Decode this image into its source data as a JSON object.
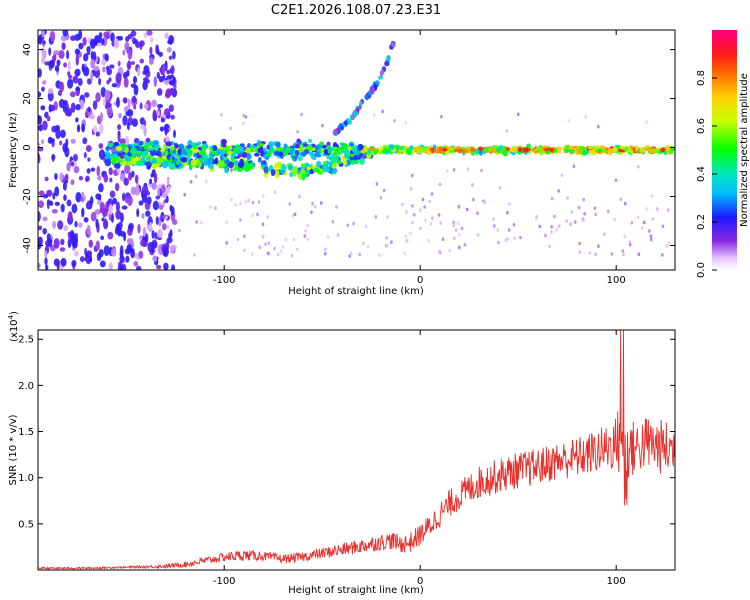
{
  "title": "C2E1.2026.108.07.23.E31",
  "chart_data": [
    {
      "type": "heatmap",
      "title": "C2E1.2026.108.07.23.E31",
      "xlabel": "Height of straight line (km)",
      "ylabel": "Frequency (Hz)",
      "xlim": [
        -195,
        130
      ],
      "ylim": [
        -50,
        48
      ],
      "x_ticks": [
        -100,
        0,
        100
      ],
      "y_ticks": [
        -40,
        -20,
        0,
        20,
        40
      ],
      "grid": false,
      "colorbar": {
        "label": "Normalized spectral amplitude",
        "range": [
          0.0,
          1.0
        ],
        "ticks": [
          0.0,
          0.2,
          0.4,
          0.6,
          0.8
        ],
        "tick_labels": [
          "0.0",
          "0.2",
          "0.4",
          "0.6",
          "0.8"
        ],
        "colormap": "rainbow"
      },
      "features": [
        {
          "name": "main-band",
          "x_range": [
            -160,
            130
          ],
          "frequency_hz": 0,
          "peak_amplitude": 0.95
        },
        {
          "name": "lower-branch",
          "x": [
            -160,
            -110,
            -80,
            -60,
            -40,
            -25
          ],
          "frequency_hz": [
            -5,
            -6,
            -8,
            -10,
            -6,
            -2
          ],
          "amplitude": 0.5
        },
        {
          "name": "rising-branch",
          "x": [
            -45,
            -35,
            -28,
            -22,
            -17,
            -13
          ],
          "frequency_hz": [
            5,
            12,
            20,
            26,
            35,
            44
          ],
          "amplitude": 0.3
        },
        {
          "name": "noise-region",
          "x_range": [
            -195,
            -125
          ],
          "frequency_range": [
            -50,
            48
          ],
          "amplitude": 0.15
        }
      ]
    },
    {
      "type": "line",
      "xlabel": "Height of straight line (km)",
      "ylabel": "SNR (10 * v/v)",
      "y_multiplier": "(x10",
      "y_multiplier_exp": "4",
      "y_multiplier_close": ")",
      "xlim": [
        -195,
        130
      ],
      "ylim": [
        0,
        2.6
      ],
      "x_ticks": [
        -100,
        0,
        100
      ],
      "y_ticks": [
        0.5,
        1.0,
        1.5,
        2.0,
        2.5
      ],
      "y_tick_labels": [
        "0.5",
        "1.0",
        "1.5",
        "2.0",
        "2.5"
      ],
      "grid": false,
      "series": [
        {
          "name": "SNR",
          "color": "#e8312d",
          "x": [
            -195,
            -170,
            -150,
            -130,
            -120,
            -110,
            -100,
            -90,
            -80,
            -70,
            -60,
            -50,
            -40,
            -30,
            -20,
            -15,
            -10,
            -5,
            0,
            5,
            10,
            15,
            20,
            25,
            30,
            40,
            50,
            60,
            70,
            80,
            90,
            95,
            100,
            103,
            105,
            110,
            115,
            120,
            125,
            130
          ],
          "values": [
            0.02,
            0.02,
            0.03,
            0.04,
            0.06,
            0.1,
            0.14,
            0.16,
            0.15,
            0.12,
            0.14,
            0.18,
            0.22,
            0.26,
            0.3,
            0.32,
            0.28,
            0.3,
            0.38,
            0.48,
            0.6,
            0.72,
            0.8,
            0.88,
            0.95,
            1.02,
            1.08,
            1.12,
            1.18,
            1.22,
            1.28,
            1.32,
            1.38,
            1.45,
            1.3,
            1.32,
            1.38,
            1.35,
            1.32,
            1.3
          ],
          "noise_amplitude": [
            0.01,
            0.01,
            0.01,
            0.02,
            0.03,
            0.04,
            0.05,
            0.06,
            0.05,
            0.05,
            0.05,
            0.06,
            0.07,
            0.08,
            0.09,
            0.1,
            0.1,
            0.11,
            0.12,
            0.13,
            0.14,
            0.15,
            0.16,
            0.17,
            0.18,
            0.19,
            0.2,
            0.2,
            0.21,
            0.22,
            0.24,
            0.26,
            0.3,
            0.5,
            0.34,
            0.3,
            0.3,
            0.3,
            0.3,
            0.3
          ]
        }
      ]
    }
  ]
}
